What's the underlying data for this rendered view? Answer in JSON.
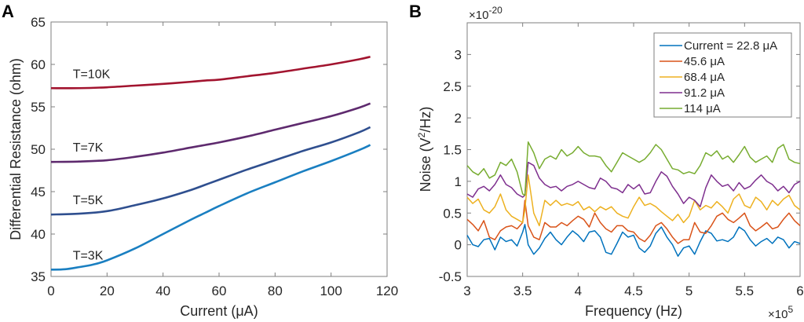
{
  "chart_data": [
    {
      "panel": "A",
      "type": "line",
      "title": "",
      "xlabel": "Current (μA)",
      "ylabel": "Differential Resistance (ohm)",
      "xlim": [
        0,
        120
      ],
      "ylim": [
        35,
        65
      ],
      "xticks": [
        0,
        20,
        40,
        60,
        80,
        100,
        120
      ],
      "yticks": [
        35,
        40,
        45,
        50,
        55,
        60,
        65
      ],
      "grid": false,
      "series": [
        {
          "name": "T=10K",
          "color": "#a2142f",
          "x": [
            0,
            10,
            20,
            30,
            40,
            50,
            55,
            60,
            70,
            80,
            90,
            100,
            110,
            114
          ],
          "y": [
            57.2,
            57.2,
            57.3,
            57.5,
            57.7,
            57.95,
            58.1,
            58.2,
            58.6,
            59.0,
            59.5,
            60.0,
            60.6,
            60.9
          ]
        },
        {
          "name": "T=7K",
          "color": "#5e2a6e",
          "x": [
            0,
            10,
            20,
            30,
            40,
            50,
            55,
            60,
            70,
            80,
            90,
            100,
            110,
            114
          ],
          "y": [
            48.5,
            48.55,
            48.7,
            49.1,
            49.6,
            50.2,
            50.5,
            50.8,
            51.5,
            52.3,
            53.1,
            53.9,
            54.9,
            55.4
          ]
        },
        {
          "name": "T=5K",
          "color": "#2f4f8f",
          "x": [
            0,
            10,
            20,
            30,
            40,
            50,
            55,
            60,
            70,
            80,
            90,
            100,
            110,
            114
          ],
          "y": [
            42.3,
            42.4,
            42.7,
            43.4,
            44.2,
            45.2,
            45.8,
            46.4,
            47.6,
            48.7,
            49.8,
            50.8,
            52.0,
            52.6
          ]
        },
        {
          "name": "T=3K",
          "color": "#1a7fc1",
          "x": [
            0,
            5,
            10,
            15,
            20,
            30,
            40,
            50,
            55,
            60,
            70,
            80,
            90,
            100,
            110,
            114
          ],
          "y": [
            35.8,
            35.85,
            36.1,
            36.4,
            36.9,
            38.3,
            40.0,
            41.7,
            42.5,
            43.3,
            44.8,
            46.1,
            47.4,
            48.6,
            49.9,
            50.5
          ]
        }
      ],
      "annotations": [
        {
          "text": "T=10K",
          "x": 3,
          "y": 58.4
        },
        {
          "text": "T=7K",
          "x": 3,
          "y": 49.7
        },
        {
          "text": "T=5K",
          "x": 3,
          "y": 43.5
        },
        {
          "text": "T=3K",
          "x": 3,
          "y": 37.0
        }
      ]
    },
    {
      "panel": "B",
      "type": "line",
      "title": "",
      "xlabel": "Frequency (Hz)",
      "ylabel": "Noise (V²/Hz)",
      "ylabel_base": "Noise (V",
      "ylabel_sup": "2",
      "ylabel_tail": "/Hz)",
      "x_exponent": "×10",
      "x_exponent_power": "5",
      "y_exponent": "×10",
      "y_exponent_power": "-20",
      "xlim": [
        3,
        6
      ],
      "ylim": [
        -0.5,
        3.5
      ],
      "xticks": [
        3,
        3.5,
        4,
        4.5,
        5,
        5.5,
        6
      ],
      "xtick_labels": [
        "3",
        "3.5",
        "4",
        "4.5",
        "5",
        "5.5",
        "6"
      ],
      "yticks": [
        -0.5,
        0,
        0.5,
        1,
        1.5,
        2,
        2.5,
        3
      ],
      "ytick_labels": [
        "-0.5",
        "0",
        "0.5",
        "1",
        "1.5",
        "2",
        "2.5",
        "3"
      ],
      "grid": false,
      "legend_position": "top-right",
      "x": [
        3.0,
        3.05,
        3.1,
        3.15,
        3.2,
        3.25,
        3.3,
        3.35,
        3.4,
        3.45,
        3.5,
        3.52,
        3.55,
        3.6,
        3.65,
        3.7,
        3.75,
        3.8,
        3.85,
        3.9,
        3.95,
        4.0,
        4.05,
        4.1,
        4.15,
        4.2,
        4.25,
        4.3,
        4.35,
        4.4,
        4.45,
        4.5,
        4.55,
        4.6,
        4.65,
        4.7,
        4.75,
        4.8,
        4.85,
        4.9,
        4.95,
        5.0,
        5.05,
        5.1,
        5.15,
        5.2,
        5.25,
        5.3,
        5.35,
        5.4,
        5.45,
        5.5,
        5.55,
        5.6,
        5.65,
        5.7,
        5.75,
        5.8,
        5.85,
        5.9,
        5.95,
        6.0
      ],
      "series": [
        {
          "name": "Current = 22.8 μA",
          "color": "#0072bd",
          "y": [
            0.15,
            0.0,
            -0.03,
            0.08,
            0.1,
            -0.08,
            0.12,
            0.05,
            0.08,
            -0.02,
            0.2,
            0.32,
            0.0,
            -0.15,
            -0.05,
            0.1,
            0.2,
            0.08,
            0.0,
            0.12,
            0.22,
            0.15,
            0.05,
            0.2,
            0.22,
            0.12,
            -0.12,
            -0.15,
            0.02,
            0.2,
            0.12,
            0.15,
            -0.05,
            -0.12,
            -0.02,
            0.18,
            0.28,
            0.12,
            0.0,
            -0.18,
            -0.05,
            -0.02,
            -0.15,
            0.05,
            0.22,
            0.18,
            0.06,
            0.08,
            0.05,
            0.12,
            0.28,
            0.22,
            0.08,
            -0.02,
            0.05,
            0.1,
            0.02,
            0.12,
            0.08,
            -0.05,
            0.05,
            0.02
          ]
        },
        {
          "name": "45.6 μA",
          "color": "#d95319",
          "y": [
            0.4,
            0.32,
            0.22,
            0.38,
            0.12,
            0.08,
            0.22,
            0.28,
            0.3,
            0.25,
            0.35,
            0.7,
            0.3,
            0.12,
            0.08,
            0.35,
            0.28,
            0.28,
            0.35,
            0.3,
            0.38,
            0.45,
            0.4,
            0.28,
            0.5,
            0.35,
            0.25,
            0.2,
            0.3,
            0.3,
            0.22,
            0.2,
            0.1,
            0.05,
            0.15,
            0.3,
            0.35,
            0.25,
            0.12,
            0.02,
            0.08,
            0.08,
            0.35,
            0.2,
            0.18,
            0.3,
            0.45,
            0.5,
            0.4,
            0.35,
            0.42,
            0.5,
            0.3,
            0.22,
            0.28,
            0.35,
            0.25,
            0.28,
            0.4,
            0.5,
            0.38,
            0.3
          ]
        },
        {
          "name": "68.4 μA",
          "color": "#edb120",
          "y": [
            0.75,
            0.65,
            0.72,
            0.55,
            0.5,
            0.6,
            0.8,
            0.55,
            0.45,
            0.4,
            0.35,
            0.55,
            1.1,
            0.5,
            0.3,
            0.7,
            0.62,
            0.7,
            0.62,
            0.65,
            0.62,
            0.68,
            0.55,
            0.6,
            0.52,
            0.6,
            0.55,
            0.6,
            0.5,
            0.45,
            0.42,
            0.6,
            0.75,
            0.62,
            0.65,
            0.6,
            0.52,
            0.45,
            0.38,
            0.48,
            0.35,
            0.45,
            0.7,
            0.55,
            0.62,
            0.58,
            0.68,
            0.6,
            0.5,
            0.72,
            0.8,
            0.62,
            0.58,
            0.75,
            0.68,
            0.55,
            0.7,
            0.62,
            0.72,
            0.78,
            0.62,
            0.55
          ]
        },
        {
          "name": "91.2 μA",
          "color": "#7e2f8e",
          "y": [
            0.8,
            0.75,
            0.88,
            0.92,
            0.85,
            0.95,
            1.1,
            0.95,
            0.9,
            0.8,
            0.75,
            0.78,
            1.3,
            1.25,
            1.05,
            0.95,
            0.9,
            0.92,
            0.85,
            0.92,
            0.95,
            1.0,
            0.95,
            0.9,
            0.88,
            1.05,
            1.0,
            0.9,
            0.88,
            0.82,
            0.95,
            0.88,
            0.95,
            0.8,
            0.82,
            1.0,
            1.15,
            1.08,
            0.92,
            0.8,
            0.65,
            0.75,
            0.7,
            0.6,
            0.9,
            1.1,
            1.0,
            0.92,
            0.95,
            0.85,
            0.98,
            0.88,
            0.92,
            1.02,
            1.1,
            1.0,
            0.95,
            0.85,
            0.92,
            0.82,
            0.95,
            1.0
          ]
        },
        {
          "name": "114 μA",
          "color": "#77ac30",
          "y": [
            1.25,
            1.15,
            1.1,
            1.2,
            1.05,
            1.1,
            1.3,
            1.25,
            1.35,
            1.15,
            0.8,
            0.78,
            1.62,
            1.45,
            1.2,
            1.35,
            1.4,
            1.35,
            1.5,
            1.4,
            1.45,
            1.55,
            1.45,
            1.4,
            1.4,
            1.38,
            1.25,
            1.15,
            1.3,
            1.45,
            1.4,
            1.35,
            1.3,
            1.35,
            1.45,
            1.58,
            1.5,
            1.35,
            1.2,
            1.18,
            1.12,
            1.15,
            1.12,
            1.25,
            1.45,
            1.4,
            1.48,
            1.35,
            1.4,
            1.3,
            1.42,
            1.55,
            1.38,
            1.3,
            1.35,
            1.4,
            1.3,
            1.52,
            1.58,
            1.35,
            1.3,
            1.28
          ]
        }
      ]
    }
  ]
}
